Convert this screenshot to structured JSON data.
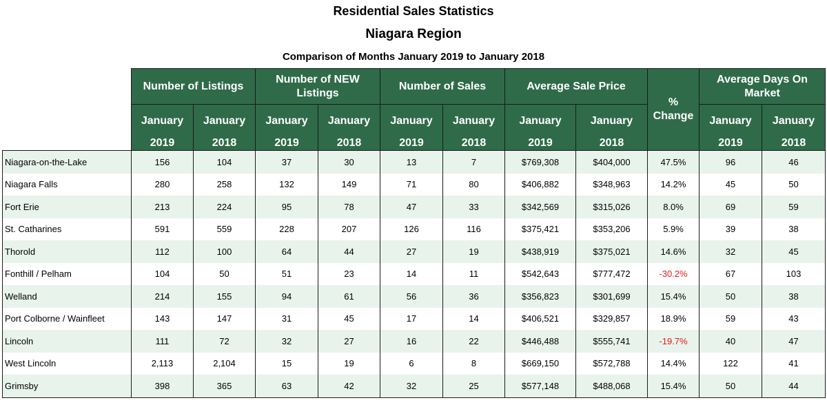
{
  "title": "Residential Sales Statistics",
  "subtitle": "Niagara Region",
  "comparison": "Comparison of Months January 2019 to January 2018",
  "headers": {
    "listings": "Number of Listings",
    "new_listings": "Number of NEW Listings",
    "sales": "Number of Sales",
    "avg_price": "Average Sale Price",
    "pct_change": "% Change",
    "avg_days": "Average Days On Market",
    "month": "January",
    "year_a": "2019",
    "year_b": "2018"
  },
  "rows": [
    {
      "city": "Niagara-on-the-Lake",
      "l19": "156",
      "l18": "104",
      "n19": "37",
      "n18": "30",
      "s19": "13",
      "s18": "7",
      "p19": "$769,308",
      "p18": "$404,000",
      "pct": "47.5%",
      "d19": "96",
      "d18": "46"
    },
    {
      "city": "Niagara Falls",
      "l19": "280",
      "l18": "258",
      "n19": "132",
      "n18": "149",
      "s19": "71",
      "s18": "80",
      "p19": "$406,882",
      "p18": "$348,963",
      "pct": "14.2%",
      "d19": "45",
      "d18": "50"
    },
    {
      "city": "Fort Erie",
      "l19": "213",
      "l18": "224",
      "n19": "95",
      "n18": "78",
      "s19": "47",
      "s18": "33",
      "p19": "$342,569",
      "p18": "$315,026",
      "pct": "8.0%",
      "d19": "69",
      "d18": "59"
    },
    {
      "city": "St. Catharines",
      "l19": "591",
      "l18": "559",
      "n19": "228",
      "n18": "207",
      "s19": "126",
      "s18": "116",
      "p19": "$375,421",
      "p18": "$353,206",
      "pct": "5.9%",
      "d19": "39",
      "d18": "38"
    },
    {
      "city": "Thorold",
      "l19": "112",
      "l18": "100",
      "n19": "64",
      "n18": "44",
      "s19": "27",
      "s18": "19",
      "p19": "$438,919",
      "p18": "$375,021",
      "pct": "14.6%",
      "d19": "32",
      "d18": "45"
    },
    {
      "city": "Fonthill / Pelham",
      "l19": "104",
      "l18": "50",
      "n19": "51",
      "n18": "23",
      "s19": "14",
      "s18": "11",
      "p19": "$542,643",
      "p18": "$777,472",
      "pct": "-30.2%",
      "d19": "67",
      "d18": "103"
    },
    {
      "city": "Welland",
      "l19": "214",
      "l18": "155",
      "n19": "94",
      "n18": "61",
      "s19": "56",
      "s18": "36",
      "p19": "$356,823",
      "p18": "$301,699",
      "pct": "15.4%",
      "d19": "50",
      "d18": "38"
    },
    {
      "city": "Port Colborne / Wainfleet",
      "l19": "143",
      "l18": "147",
      "n19": "31",
      "n18": "45",
      "s19": "17",
      "s18": "14",
      "p19": "$406,521",
      "p18": "$329,857",
      "pct": "18.9%",
      "d19": "59",
      "d18": "43"
    },
    {
      "city": "Lincoln",
      "l19": "111",
      "l18": "72",
      "n19": "32",
      "n18": "27",
      "s19": "16",
      "s18": "22",
      "p19": "$446,488",
      "p18": "$555,741",
      "pct": "-19.7%",
      "d19": "40",
      "d18": "47"
    },
    {
      "city": "West Lincoln",
      "l19": "2,113",
      "l18": "2,104",
      "n19": "15",
      "n18": "19",
      "s19": "6",
      "s18": "8",
      "p19": "$669,150",
      "p18": "$572,788",
      "pct": "14.4%",
      "d19": "122",
      "d18": "41"
    },
    {
      "city": "Grimsby",
      "l19": "398",
      "l18": "365",
      "n19": "63",
      "n18": "42",
      "s19": "32",
      "s18": "25",
      "p19": "$577,148",
      "p18": "$488,068",
      "pct": "15.4%",
      "d19": "50",
      "d18": "44"
    }
  ],
  "colors": {
    "header_bg": "#2f6b49",
    "row_alt": "#e8f3ec",
    "negative": "#e11b1b"
  }
}
